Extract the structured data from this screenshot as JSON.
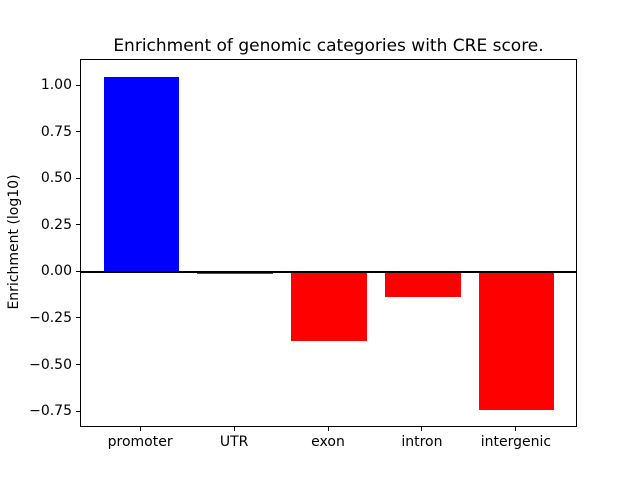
{
  "figure": {
    "background": "#ffffff"
  },
  "chart_data": {
    "type": "bar",
    "title": "Enrichment of genomic categories with CRE score.",
    "xlabel": "",
    "ylabel": "Enrichment (log10)",
    "categories": [
      "promoter",
      "UTR",
      "exon",
      "intron",
      "intergenic"
    ],
    "values": [
      1.05,
      -0.01,
      -0.37,
      -0.13,
      -0.74
    ],
    "bar_colors": [
      "#0000ff",
      "#ff0000",
      "#ff0000",
      "#ff0000",
      "#ff0000"
    ],
    "positive_color": "#0000ff",
    "negative_color": "#ff0000",
    "yticks": [
      1.0,
      0.75,
      0.5,
      0.25,
      0.0,
      -0.25,
      -0.5,
      -0.75
    ],
    "ytick_labels": [
      "1.00",
      "0.75",
      "0.50",
      "0.25",
      "0.00",
      "−0.25",
      "−0.50",
      "−0.75"
    ],
    "ylim": [
      -0.83,
      1.14
    ],
    "xlim": [
      -0.64,
      4.64
    ],
    "bar_width": 0.8,
    "zero_line": true,
    "grid": false,
    "legend": null
  }
}
